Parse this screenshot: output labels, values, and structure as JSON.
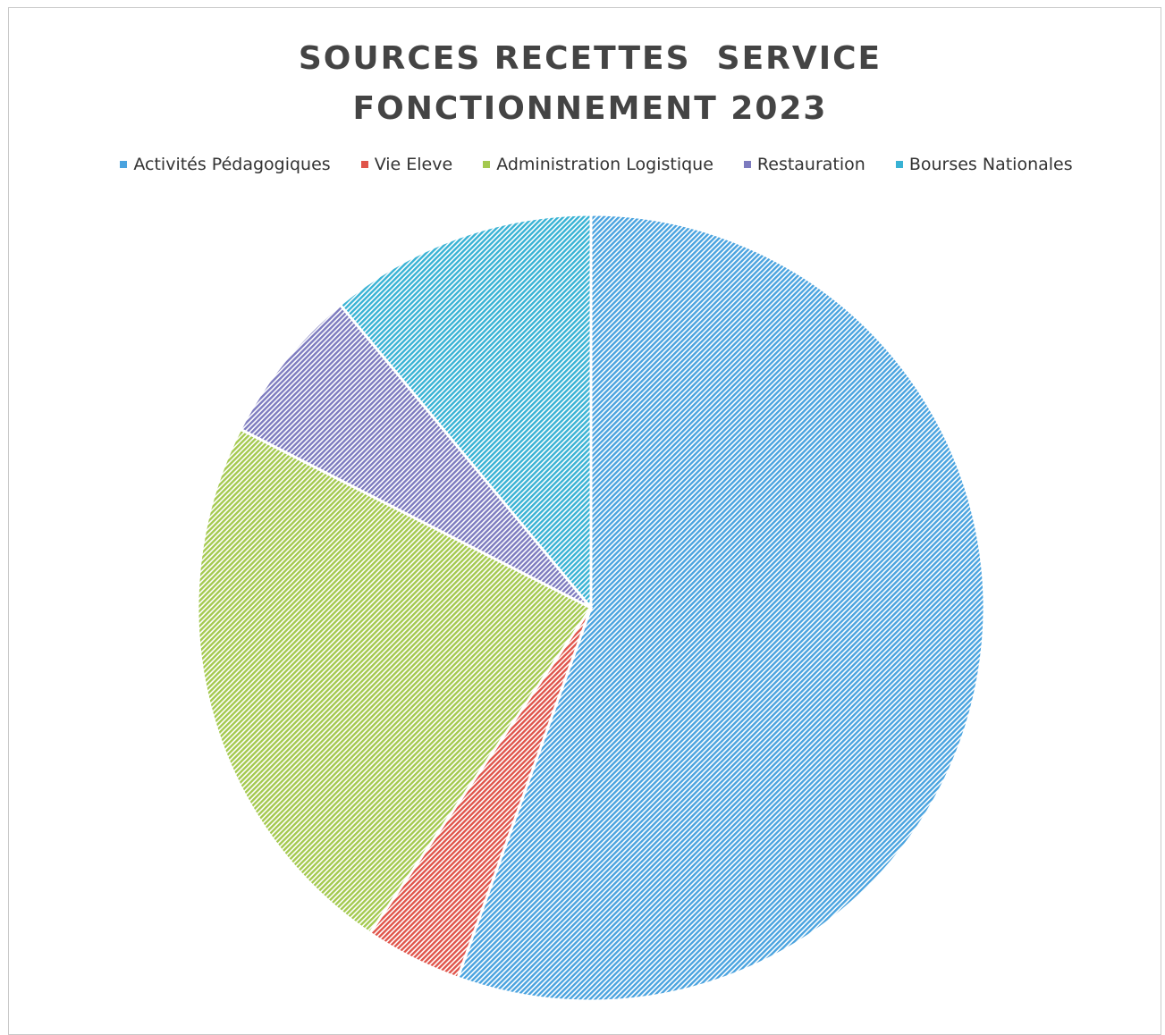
{
  "chart_data": {
    "type": "pie",
    "title": "SOURCES RECETTES  SERVICE\nFONCTIONNEMENT 2023",
    "categories": [
      "Activités Pédagogiques",
      "Vie Eleve",
      "Administration Logistique",
      "Restauration",
      "Bourses Nationales"
    ],
    "values": [
      55.5,
      4.0,
      23.0,
      6.5,
      11.0
    ],
    "colors": [
      "#4aa3df",
      "#e0544a",
      "#a4c94f",
      "#7d7bbf",
      "#38b2d4"
    ],
    "legend_position": "top",
    "pattern": "diagonal-hatch"
  }
}
